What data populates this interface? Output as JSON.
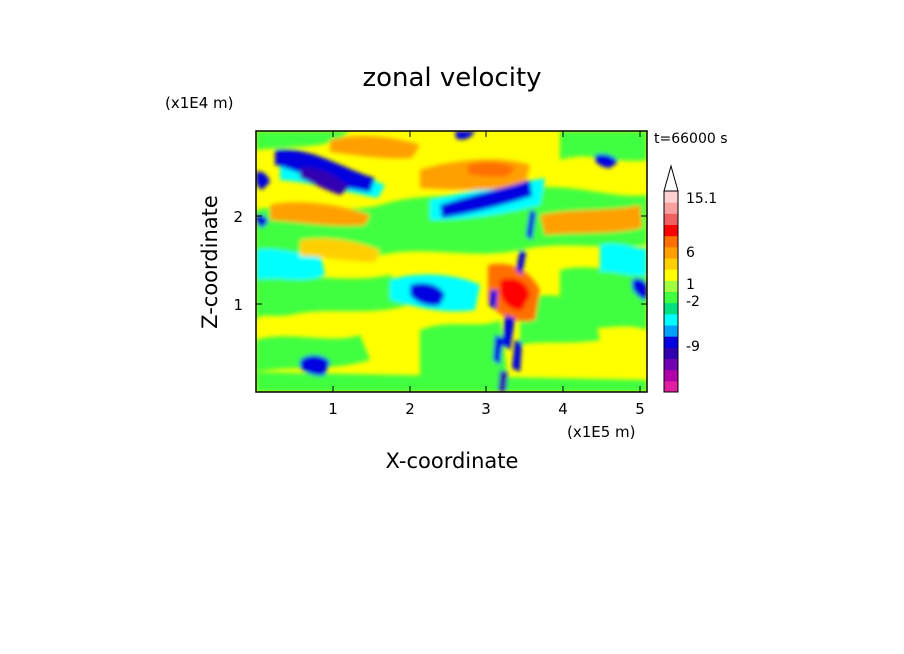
{
  "chart_data": {
    "type": "heatmap",
    "title": "zonal velocity",
    "xlabel": "X-coordinate",
    "ylabel": "Z-coordinate",
    "x_scale_label": "(x1E5 m)",
    "y_scale_label": "(x1E4 m)",
    "time_label": "t=66000 s",
    "xlim": [
      0,
      5.15
    ],
    "ylim": [
      0,
      2.95
    ],
    "x_ticks": [
      "1",
      "2",
      "3",
      "4",
      "5"
    ],
    "y_ticks": [
      "1",
      "2"
    ],
    "colorbar": {
      "position": "right",
      "extend_top": true,
      "labels": [
        "15.1",
        "6",
        "1",
        "-2",
        "-9"
      ],
      "levels": [
        {
          "color": "#e020a0"
        },
        {
          "color": "#b000a8"
        },
        {
          "color": "#7000b0"
        },
        {
          "color": "#3000b0"
        },
        {
          "color": "#0000e0"
        },
        {
          "color": "#00a0ff"
        },
        {
          "color": "#00ffff"
        },
        {
          "color": "#00e080"
        },
        {
          "color": "#40ff40"
        },
        {
          "color": "#a0ff40"
        },
        {
          "color": "#ffff00"
        },
        {
          "color": "#ffd000"
        },
        {
          "color": "#ffa000"
        },
        {
          "color": "#ff7000"
        },
        {
          "color": "#ff0000"
        },
        {
          "color": "#f06060"
        },
        {
          "color": "#f8a0a0"
        },
        {
          "color": "#ffd0d0"
        }
      ]
    }
  }
}
